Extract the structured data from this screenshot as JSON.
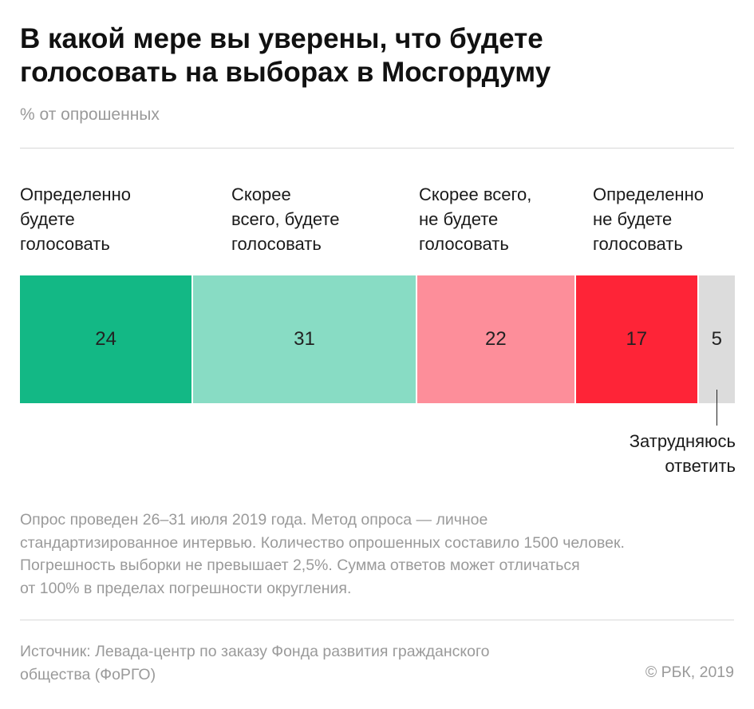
{
  "header": {
    "title_lines": [
      "В какой мере вы уверены, что будете",
      "голосовать на выборах в Мосгордуму"
    ],
    "subtitle": "% от опрошенных"
  },
  "chart_data": {
    "type": "bar",
    "orientation": "horizontal-stacked-100",
    "title": "В какой мере вы уверены, что будете голосовать на выборах в Мосгордуму",
    "unit": "% от опрошенных",
    "categories": [
      [
        "Определенно",
        "будете",
        "голосовать"
      ],
      [
        "Скорее",
        "всего, будете",
        "голосовать"
      ],
      [
        "Скорее всего,",
        "не будете",
        "голосовать"
      ],
      [
        "Определенно",
        "не будете",
        "голосовать"
      ],
      [
        "Затрудняюсь",
        "ответить"
      ]
    ],
    "values": [
      24,
      31,
      22,
      17,
      5
    ],
    "colors": [
      "#13b885",
      "#88dcc4",
      "#fd8e9a",
      "#fe2437",
      "#dcdcdc"
    ]
  },
  "footer": {
    "note_lines": [
      "Опрос проведен 26–31 июля 2019 года. Метод опроса — личное",
      "стандартизированное интервью. Количество опрошенных составило 1500 человек.",
      "Погрешность выборки не превышает 2,5%. Сумма ответов может отличаться",
      "от 100% в пределах погрешности округления."
    ],
    "source_lines": [
      "Источник: Левада-центр по заказу Фонда развития гражданского",
      "общества (ФоРГО)"
    ],
    "copyright": "© РБК, 2019"
  }
}
